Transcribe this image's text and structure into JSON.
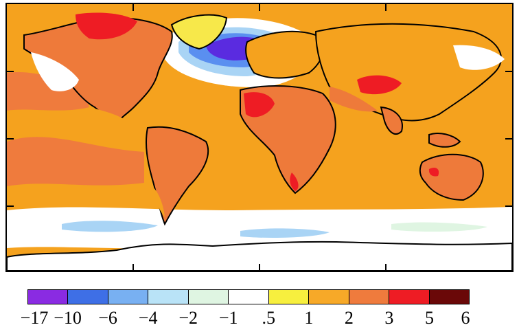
{
  "map": {
    "colors": {
      "ocean_base": "#f5a21e",
      "land_base": "#ee7a3a",
      "strong_warm": "#ee1c24",
      "cold_deep": "#5a2be0",
      "cold_mid": "#5a8ff0",
      "cold_light": "#a9d4f5",
      "near_zero": "#ffffff",
      "slight_warm": "#f7e84a",
      "coastline": "#000000"
    }
  },
  "legend": {
    "swatches": [
      {
        "color": "#8a2be2"
      },
      {
        "color": "#3e6fe6"
      },
      {
        "color": "#78b0f2"
      },
      {
        "color": "#b9e3f7"
      },
      {
        "color": "#dff5e2"
      },
      {
        "color": "#ffffff"
      },
      {
        "color": "#f7ef3e"
      },
      {
        "color": "#f7a928"
      },
      {
        "color": "#ef7b3d"
      },
      {
        "color": "#ee1c24"
      },
      {
        "color": "#6a0808"
      }
    ],
    "labels": [
      "−17",
      "−10",
      "−6",
      "−4",
      "−2",
      "−1",
      ".5",
      "1",
      "2",
      "3",
      "5",
      "6"
    ]
  }
}
